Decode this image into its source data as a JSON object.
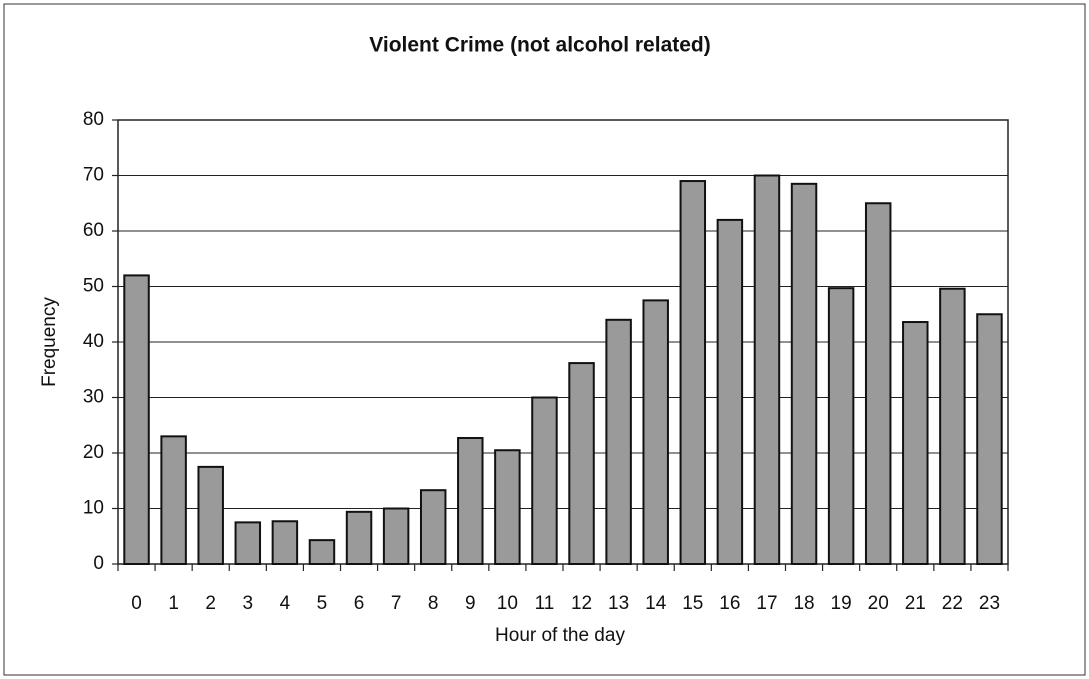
{
  "chart_data": {
    "type": "bar",
    "title": "Violent Crime (not alcohol related)",
    "x_label": "Hour of the day",
    "y_label": "Frequency",
    "categories": [
      0,
      1,
      2,
      3,
      4,
      5,
      6,
      7,
      8,
      9,
      10,
      11,
      12,
      13,
      14,
      15,
      16,
      17,
      18,
      19,
      20,
      21,
      22,
      23
    ],
    "values": [
      52,
      23,
      17.5,
      7.5,
      7.7,
      4.3,
      9.4,
      10,
      13.3,
      22.7,
      20.5,
      30,
      36.2,
      44,
      47.5,
      69,
      62,
      70,
      68.5,
      49.7,
      65,
      43.6,
      49.6,
      45
    ],
    "color": "#9a9a9a",
    "ylim": [
      0,
      80
    ],
    "yticks": [
      0,
      10,
      20,
      30,
      40,
      50,
      60,
      70,
      80
    ],
    "grid": true
  }
}
